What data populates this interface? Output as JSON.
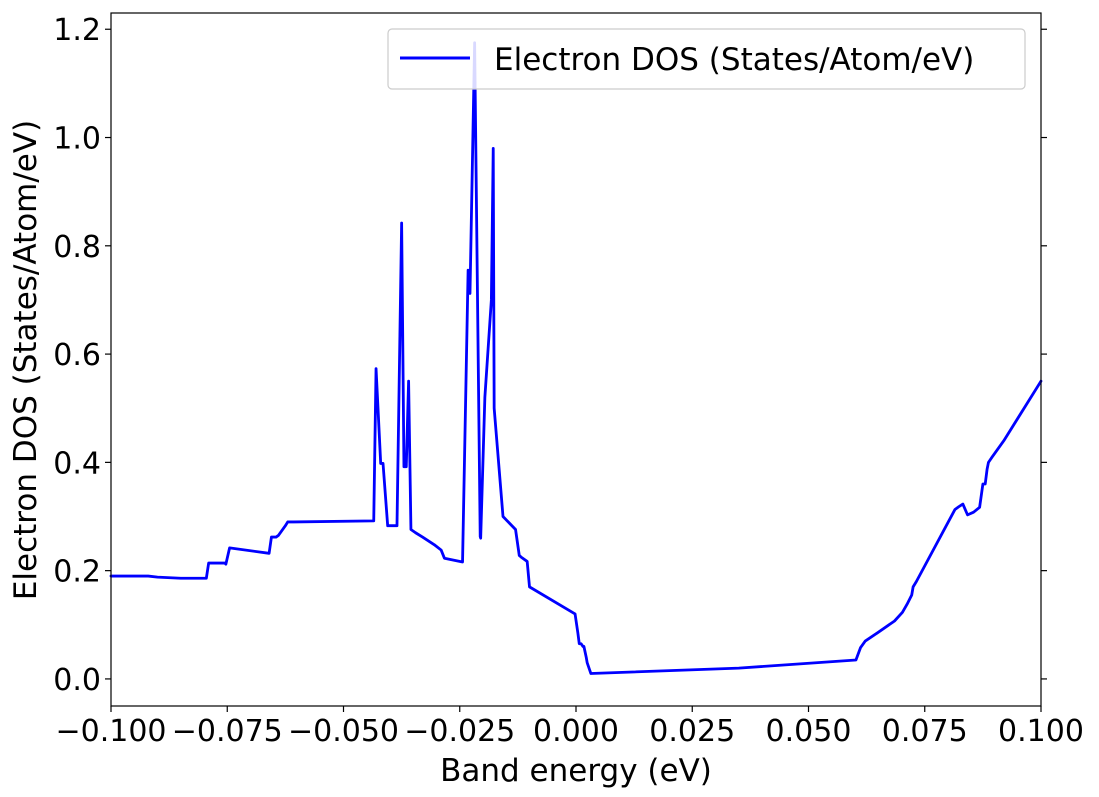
{
  "chart_data": {
    "type": "line",
    "title": "",
    "xlabel": "Band energy (eV)",
    "ylabel": "Electron DOS (States/Atom/eV)",
    "xlim": [
      -0.1,
      0.1
    ],
    "ylim": [
      -0.05,
      1.23
    ],
    "xticks": [
      -0.1,
      -0.075,
      -0.05,
      -0.025,
      0.0,
      0.025,
      0.05,
      0.075,
      0.1
    ],
    "xtick_labels": [
      "−0.100",
      "−0.075",
      "−0.050",
      "−0.025",
      "0.000",
      "0.025",
      "0.050",
      "0.075",
      "0.100"
    ],
    "yticks": [
      0.0,
      0.2,
      0.4,
      0.6,
      0.8,
      1.0,
      1.2
    ],
    "ytick_labels": [
      "0.0",
      "0.2",
      "0.4",
      "0.6",
      "0.8",
      "1.0",
      "1.2"
    ],
    "grid": false,
    "legend_position": "top-right",
    "series": [
      {
        "name": "Electron DOS (States/Atom/eV)",
        "color": "#0000ff",
        "x": [
          -0.1,
          -0.092,
          -0.09,
          -0.085,
          -0.0795,
          -0.079,
          -0.0755,
          -0.0753,
          -0.0745,
          -0.066,
          -0.0655,
          -0.0645,
          -0.064,
          -0.0625,
          -0.062,
          -0.0607,
          -0.0435,
          -0.043,
          -0.042,
          -0.0415,
          -0.0405,
          -0.0385,
          -0.0375,
          -0.037,
          -0.0365,
          -0.036,
          -0.0355,
          -0.0345,
          -0.033,
          -0.0305,
          -0.029,
          -0.0283,
          -0.0244,
          -0.0232,
          -0.0228,
          -0.0218,
          -0.0206,
          -0.0205,
          -0.0196,
          -0.0182,
          -0.0178,
          -0.0176,
          -0.0157,
          -0.013,
          -0.0122,
          -0.0118,
          -0.0105,
          -0.01,
          -0.0002,
          0.0004,
          0.0007,
          0.0011,
          0.0015,
          0.0017,
          0.0022,
          0.0024,
          0.0032,
          0.035,
          0.0602,
          0.0612,
          0.0622,
          0.0648,
          0.0685,
          0.0702,
          0.0712,
          0.0722,
          0.0725,
          0.0732,
          0.0815,
          0.0823,
          0.0832,
          0.0842,
          0.0855,
          0.0868,
          0.0875,
          0.088,
          0.0884,
          0.0887,
          0.0895,
          0.092,
          0.1
        ],
        "y": [
          0.19,
          0.19,
          0.188,
          0.186,
          0.186,
          0.214,
          0.214,
          0.212,
          0.242,
          0.232,
          0.262,
          0.262,
          0.265,
          0.283,
          0.29,
          0.29,
          0.292,
          0.573,
          0.398,
          0.398,
          0.283,
          0.283,
          0.842,
          0.392,
          0.392,
          0.55,
          0.276,
          0.27,
          0.262,
          0.248,
          0.238,
          0.223,
          0.216,
          0.755,
          0.712,
          1.175,
          0.263,
          0.26,
          0.52,
          0.7,
          0.98,
          0.5,
          0.3,
          0.276,
          0.228,
          0.225,
          0.217,
          0.17,
          0.12,
          0.085,
          0.065,
          0.065,
          0.06,
          0.06,
          0.04,
          0.03,
          0.01,
          0.02,
          0.035,
          0.058,
          0.07,
          0.085,
          0.107,
          0.123,
          0.138,
          0.155,
          0.17,
          0.18,
          0.313,
          0.318,
          0.323,
          0.303,
          0.308,
          0.317,
          0.36,
          0.36,
          0.387,
          0.4,
          0.41,
          0.44,
          0.55
        ]
      }
    ]
  }
}
